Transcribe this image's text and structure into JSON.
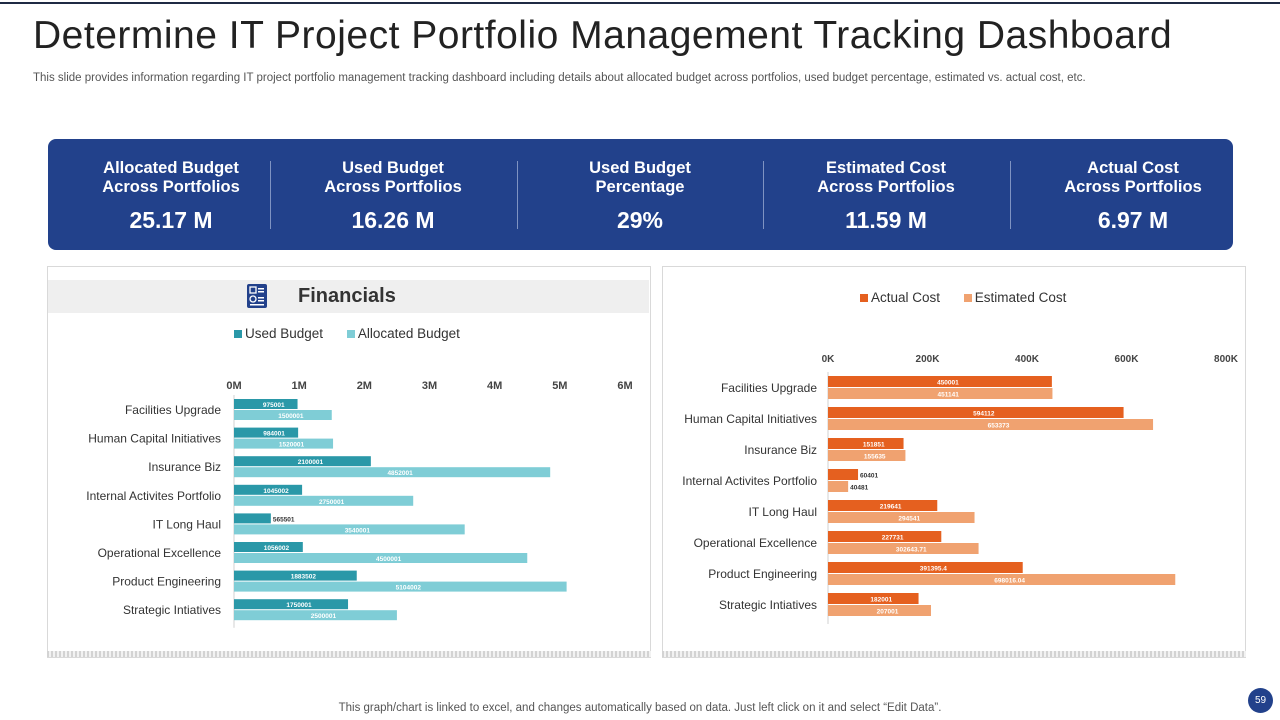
{
  "header": {
    "title": "Determine IT Project Portfolio Management Tracking Dashboard",
    "subtitle": "This slide provides information regarding IT project portfolio management tracking dashboard including details about allocated budget across portfolios, used budget percentage, estimated vs. actual cost, etc."
  },
  "kpis": [
    {
      "label_line1": "Allocated Budget",
      "label_line2": "Across Portfolios",
      "value": "25.17 M"
    },
    {
      "label_line1": "Used Budget",
      "label_line2": "Across Portfolios",
      "value": "16.26 M"
    },
    {
      "label_line1": "Used Budget",
      "label_line2": "Percentage",
      "value": "29%"
    },
    {
      "label_line1": "Estimated Cost",
      "label_line2": "Across Portfolios",
      "value": "11.59 M"
    },
    {
      "label_line1": "Actual Cost",
      "label_line2": "Across Portfolios",
      "value": "6.97 M"
    }
  ],
  "financials": {
    "title": "Financials",
    "icon": "financial-document-icon"
  },
  "colors": {
    "kpi_bg": "#22418b",
    "used_budget": "#2a98a8",
    "allocated_budget": "#7fcdd6",
    "actual_cost": "#e5601f",
    "estimated_cost": "#f0a270"
  },
  "chart_data": [
    {
      "type": "bar",
      "orientation": "horizontal",
      "categories": [
        "Facilities Upgrade",
        "Human Capital Initiatives",
        "Insurance Biz",
        "Internal Activites Portfolio",
        "IT Long Haul",
        "Operational Excellence",
        "Product Engineering",
        "Strategic Intiatives"
      ],
      "series": [
        {
          "name": "Used Budget",
          "values": [
            975001,
            984001,
            2100001,
            1045002,
            565501,
            1056002,
            1883502,
            1750001
          ],
          "labels": [
            "975001",
            "984001",
            "2100001",
            "1045002",
            "565501",
            "1056002",
            "1883502",
            "1750001"
          ]
        },
        {
          "name": "Allocated Budget",
          "values": [
            1500001,
            1520001,
            4852001,
            2750001,
            3540001,
            4500001,
            5104002,
            2500001
          ],
          "labels": [
            "1500001",
            "1520001",
            "4852001",
            "2750001",
            "3540001",
            "4500001",
            "5104002",
            "2500001"
          ]
        }
      ],
      "xlim": [
        0,
        6000000
      ],
      "ticks": [
        0,
        1000000,
        2000000,
        3000000,
        4000000,
        5000000,
        6000000
      ],
      "tick_labels": [
        "0M",
        "1M",
        "2M",
        "3M",
        "4M",
        "5M",
        "6M"
      ],
      "legend": "top"
    },
    {
      "type": "bar",
      "orientation": "horizontal",
      "categories": [
        "Facilities Upgrade",
        "Human Capital Initiatives",
        "Insurance Biz",
        "Internal Activites Portfolio",
        "IT Long Haul",
        "Operational Excellence",
        "Product Engineering",
        "Strategic Intiatives"
      ],
      "series": [
        {
          "name": "Actual Cost",
          "values": [
            450001,
            594112,
            151851,
            60401,
            219641,
            227731,
            391395.4,
            182001
          ],
          "labels": [
            "450001",
            "594112",
            "151851",
            "60401",
            "219641",
            "227731",
            "391395.4",
            "182001"
          ]
        },
        {
          "name": "Estimated Cost",
          "values": [
            451141,
            653373,
            155635,
            40481,
            294541,
            302643.71,
            698016.04,
            207001
          ],
          "labels": [
            "451141",
            "653373",
            "155635",
            "40481",
            "294541",
            "302643.71",
            "698016.04",
            "207001"
          ]
        }
      ],
      "xlim": [
        0,
        800000
      ],
      "ticks": [
        0,
        200000,
        400000,
        600000,
        800000
      ],
      "tick_labels": [
        "0K",
        "200K",
        "400K",
        "600K",
        "800K"
      ],
      "legend": "top"
    }
  ],
  "footer": {
    "note": "This graph/chart is linked to excel,  and changes automatically based on data. Just left click on it and select “Edit Data”.",
    "page_number": "59"
  }
}
